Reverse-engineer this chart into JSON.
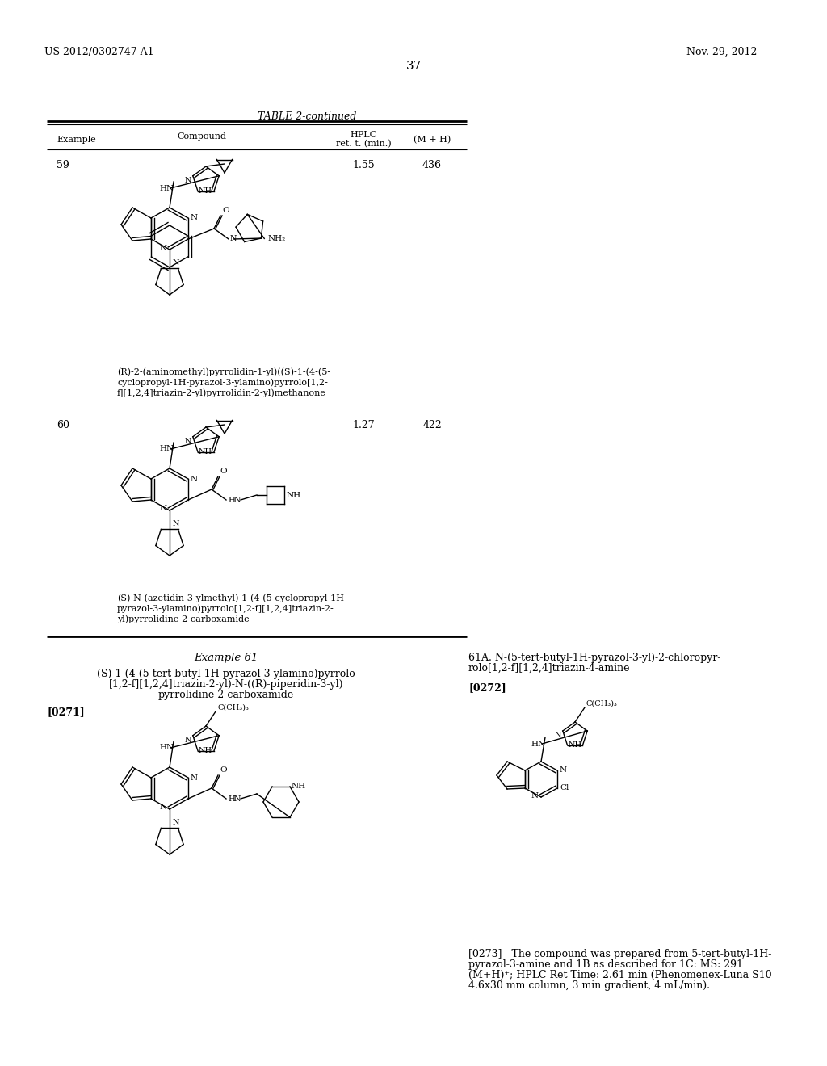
{
  "page_number": "37",
  "patent_number": "US 2012/0302747 A1",
  "patent_date": "Nov. 29, 2012",
  "table_title": "TABLE 2-continued",
  "row59_ex": "59",
  "row59_hplc": "1.55",
  "row59_mh": "436",
  "row59_name": "(R)-2-(aminomethyl)pyrrolidin-1-yl)((S)-1-(4-(5-\ncyclopropyl-1H-pyrazol-3-ylamino)pyrrolo[1,2-\nf][1,2,4]triazin-2-yl)pyrrolidin-2-yl)methanone",
  "row60_ex": "60",
  "row60_hplc": "1.27",
  "row60_mh": "422",
  "row60_name": "(S)-N-(azetidin-3-ylmethyl)-1-(4-(5-cyclopropyl-1H-\npyrazol-3-ylamino)pyrrolo[1,2-f][1,2,4]triazin-2-\nyl)pyrrolidine-2-carboxamide",
  "ex61_title": "Example 61",
  "ex61_name_l1": "(S)-1-(4-(5-tert-butyl-1H-pyrazol-3-ylamino)pyrrolo",
  "ex61_name_l2": "[1,2-f][1,2,4]triazin-2-yl)-N-((R)-piperidin-3-yl)",
  "ex61_name_l3": "pyrrolidine-2-carboxamide",
  "ex61_ref": "[0271]",
  "ex61A_title_l1": "61A. N-(5-tert-butyl-1H-pyrazol-3-yl)-2-chloropyr-",
  "ex61A_title_l2": "rolo[1,2-f][1,2,4]triazin-4-amine",
  "ex61A_ref": "[0272]",
  "para0273_l1": "[0273]   The compound was prepared from 5-tert-butyl-1H-",
  "para0273_l2": "pyrazol-3-amine and 1B as described for 1C: MS: 291",
  "para0273_l3": "(M+H)⁺; HPLC Ret Time: 2.61 min (Phenomenex-Luna S10",
  "para0273_l4": "4.6x30 mm column, 3 min gradient, 4 mL/min).",
  "bg_color": "#ffffff",
  "text_color": "#000000"
}
